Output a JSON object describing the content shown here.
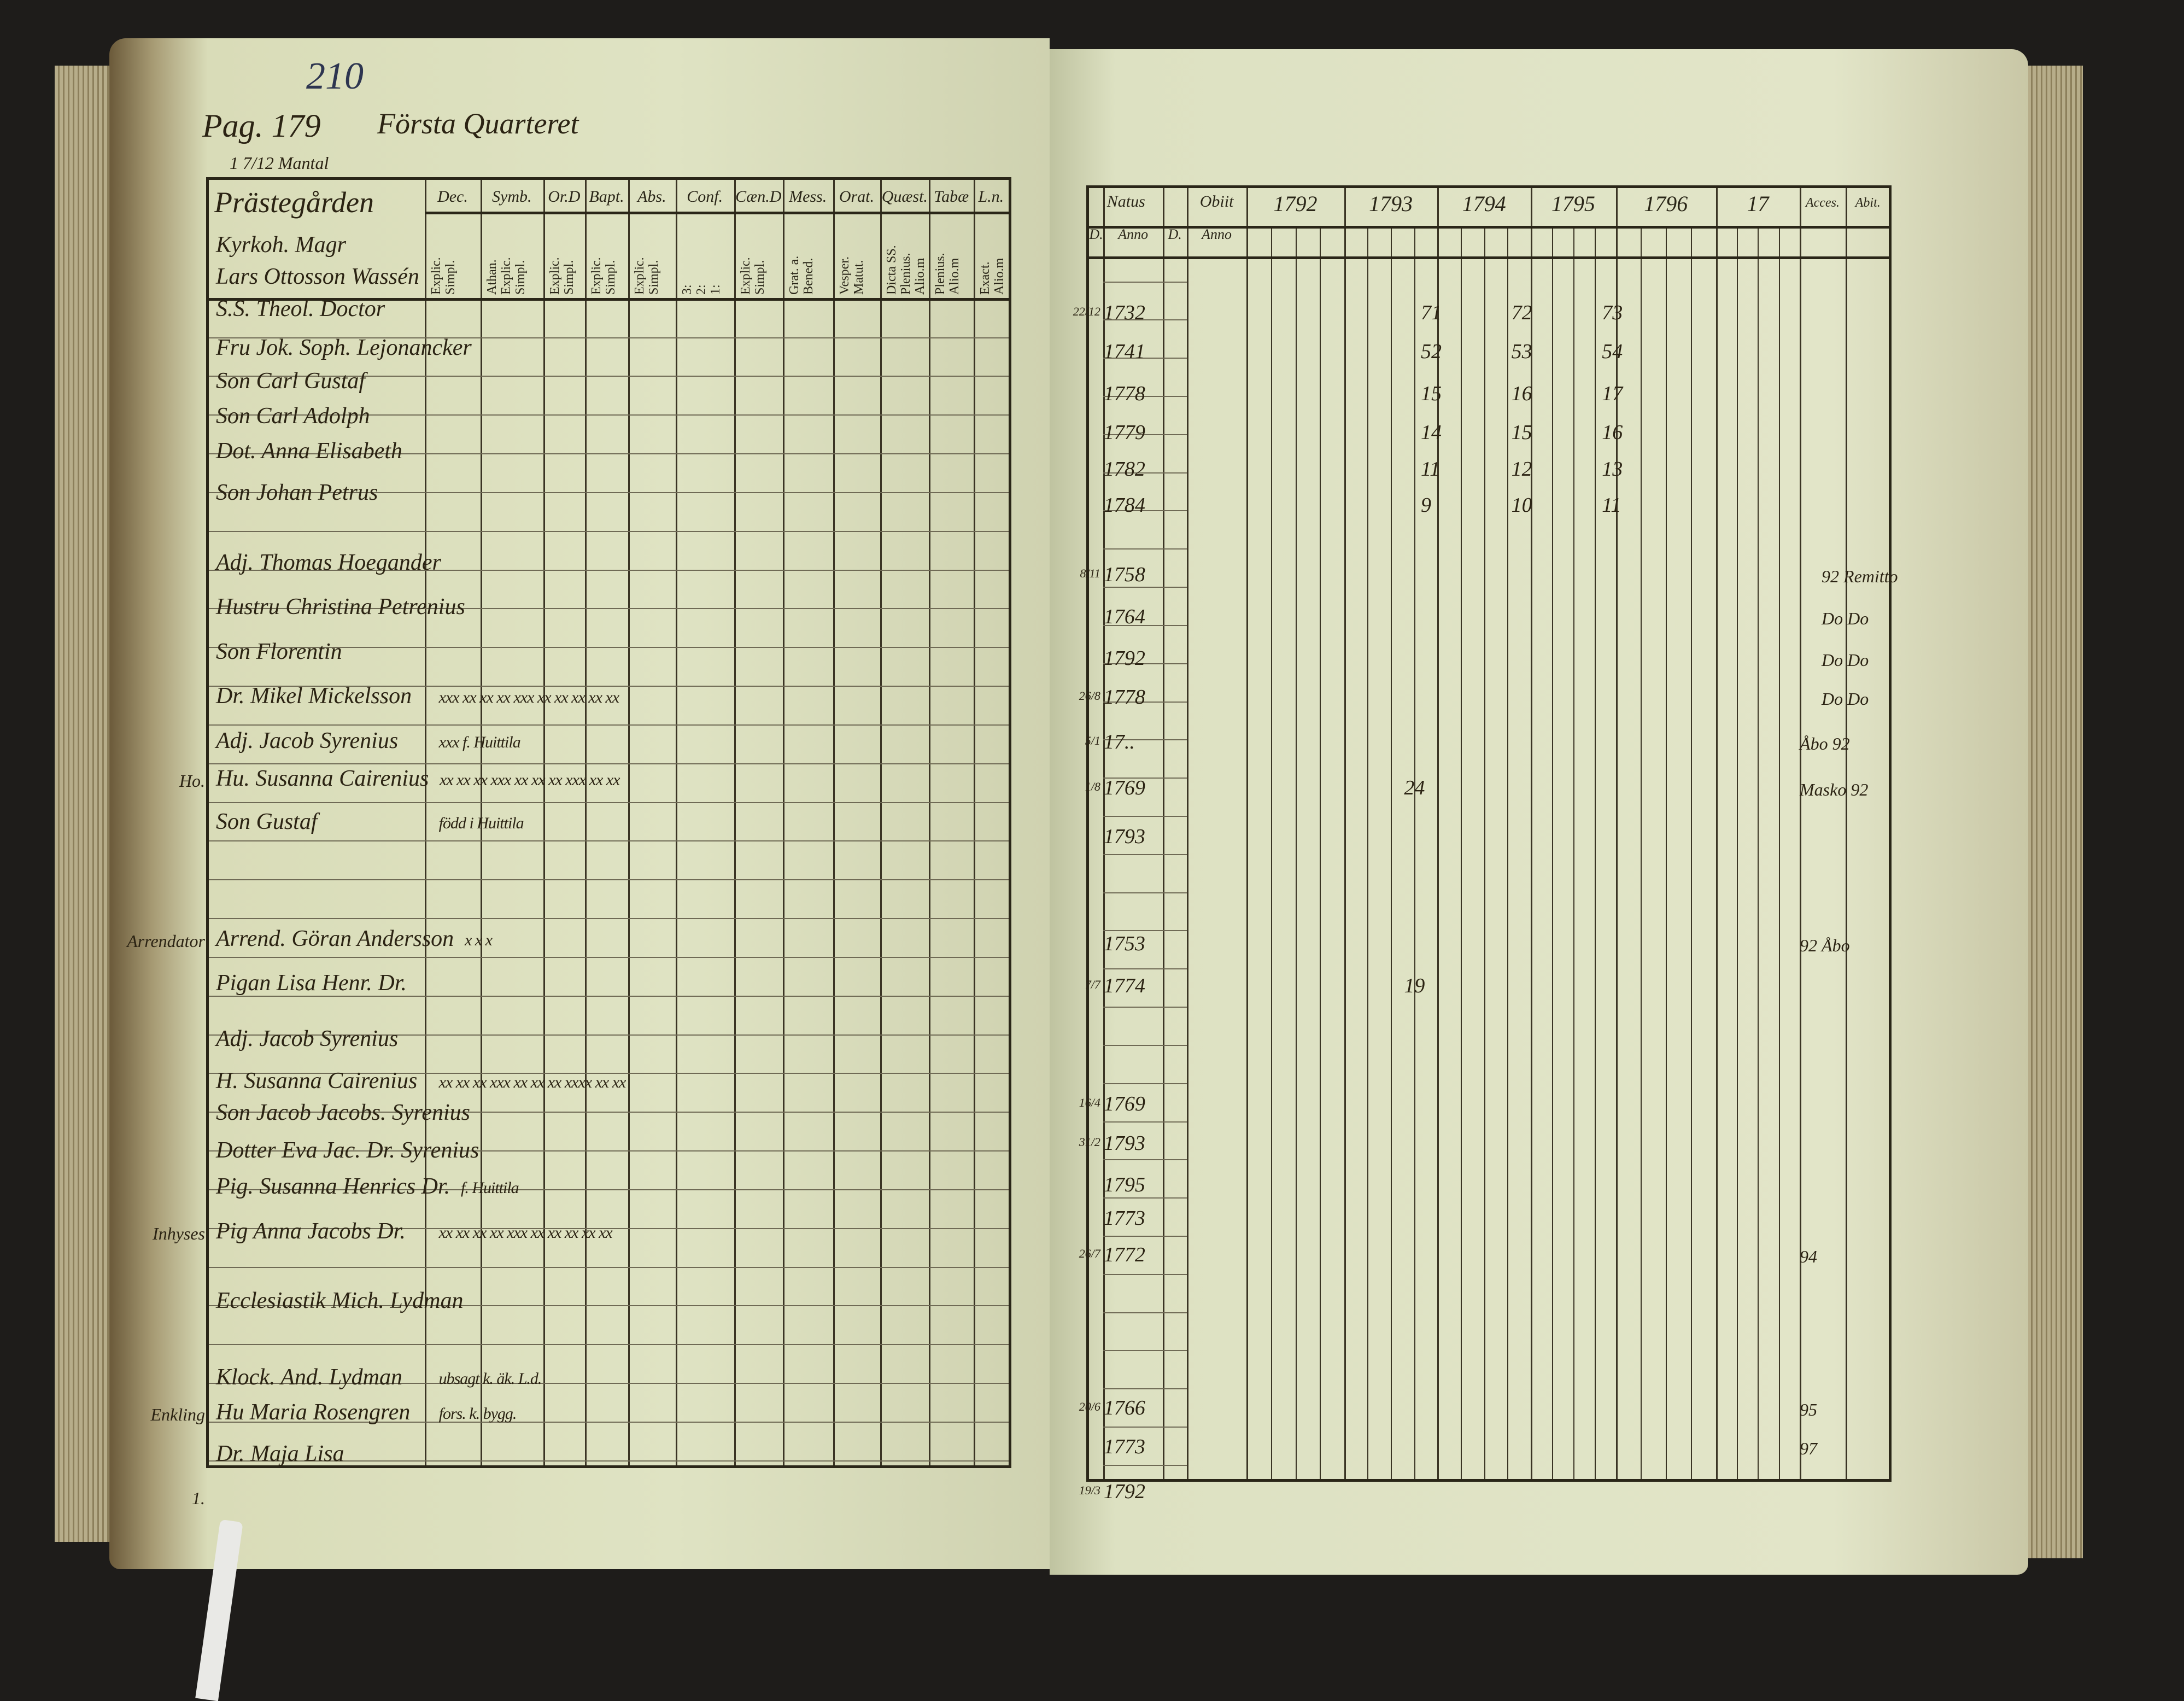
{
  "left_page": {
    "page_number": "210",
    "old_page_number": "Pag. 179",
    "section_title": "Första Quarteret",
    "mantal": "1 7/12 Mantal",
    "farm_heading": "Prästegården",
    "columns": [
      {
        "head": "Dec.",
        "sub": "Explic.\nSimpl."
      },
      {
        "head": "Symb.",
        "sub": "Athan.\nExplic.\nSimpl."
      },
      {
        "head": "Or.D",
        "sub": "Explic.\nSimpl."
      },
      {
        "head": "Bapt.",
        "sub": "Explic.\nSimpl."
      },
      {
        "head": "Abs.",
        "sub": "Explic.\nSimpl."
      },
      {
        "head": "Conf.",
        "sub": "3:\n2:\n1:"
      },
      {
        "head": "Cæn.D",
        "sub": "Explic.\nSimpl."
      },
      {
        "head": "Mess.",
        "sub": "Grat. a.\nBened."
      },
      {
        "head": "Orat.",
        "sub": "Vesper.\nMatut."
      },
      {
        "head": "Quæst.",
        "sub": "Dicta SS.\nPlenius.\nAlio.m"
      },
      {
        "head": "Tabæ",
        "sub": "Plenius.\nAlio.m"
      },
      {
        "head": "L.n.",
        "sub": "Exact.\nAlio.m"
      }
    ],
    "rows": [
      {
        "name": "Kyrkoh. Magr",
        "marks": ""
      },
      {
        "name": "Lars Ottosson Wassén",
        "marks": ""
      },
      {
        "name": "S.S. Theol. Doctor",
        "marks": ""
      },
      {
        "name": "Fru Jok. Soph. Lejonancker",
        "marks": ""
      },
      {
        "name": "Son Carl Gustaf",
        "marks": ""
      },
      {
        "name": "Son Carl Adolph",
        "marks": ""
      },
      {
        "name": "Dot. Anna Elisabeth",
        "marks": ""
      },
      {
        "name": "Son Johan Petrus",
        "marks": ""
      },
      {
        "name": "Adj. Thomas Hoegander",
        "marks": ""
      },
      {
        "name": "Hustru Christina Petrenius",
        "marks": ""
      },
      {
        "name": "Son Florentin",
        "marks": ""
      },
      {
        "name": "Dr. Mikel Mickelsson",
        "marks": "xxx  xx  xx  xx  xxx  xx  xx  xx            xx  xx"
      },
      {
        "name": "Adj. Jacob Syrenius",
        "marks": "xxx   f. Huittila"
      },
      {
        "name": "Hu. Susanna Cairenius",
        "marks": "xx  xx  xx  xxx  xx  xx  xx  xxx  xx  xx"
      },
      {
        "name": "Son Gustaf",
        "marks": "född i Huittila"
      },
      {
        "name": "Arrend. Göran Andersson",
        "marks": "x    x    x"
      },
      {
        "name": "Pigan Lisa Henr. Dr.",
        "marks": ""
      },
      {
        "name": "Adj. Jacob Syrenius",
        "marks": ""
      },
      {
        "name": "H. Susanna Cairenius",
        "marks": "xx  xx  xx  xxx  xx  xx  xx  xxxx  xx  xx"
      },
      {
        "name": "Son Jacob Jacobs. Syrenius",
        "marks": ""
      },
      {
        "name": "Dotter Eva Jac. Dr. Syrenius",
        "marks": ""
      },
      {
        "name": "Pig. Susanna Henrics Dr.",
        "marks": "f. Huittila"
      },
      {
        "name": "Pig Anna Jacobs Dr.",
        "marks": "xx  xx  xx  xx  xxx  xx  xx  xx  xx  xx"
      },
      {
        "name": "Ecclesiastik Mich. Lydman",
        "marks": ""
      },
      {
        "name": "Klock. And. Lydman",
        "marks": "ubsagt  k.   äk.       L.d."
      },
      {
        "name": "Hu Maria Rosengren",
        "marks": "fors.   k.   bygg."
      },
      {
        "name": "Dr. Maja Lisa",
        "marks": ""
      }
    ],
    "margin_notes": [
      "Ho.",
      "Arrendator",
      "Inhyses",
      "Enkling",
      "1."
    ]
  },
  "right_page": {
    "columns": {
      "natus": "Natus",
      "obiit": "Obiit",
      "d": "D.",
      "anno": "Anno",
      "years": [
        "1792",
        "1793",
        "1794",
        "1795",
        "1796",
        "17"
      ],
      "accessit": "Acces.",
      "abiit": "Abit."
    },
    "rows": [
      {
        "day": "22/12",
        "anno": "1732",
        "ages": [
          "71",
          "72",
          "73"
        ],
        "note": ""
      },
      {
        "day": "",
        "anno": "1741",
        "ages": [
          "52",
          "53",
          "54"
        ],
        "note": ""
      },
      {
        "day": "",
        "anno": "1778",
        "ages": [
          "15",
          "16",
          "17"
        ],
        "note": ""
      },
      {
        "day": "",
        "anno": "1779",
        "ages": [
          "14",
          "15",
          "16"
        ],
        "note": ""
      },
      {
        "day": "",
        "anno": "1782",
        "ages": [
          "11",
          "12",
          "13"
        ],
        "note": ""
      },
      {
        "day": "",
        "anno": "1784",
        "ages": [
          "9",
          "10",
          "11"
        ],
        "note": ""
      },
      {
        "day": "",
        "anno": "",
        "ages": [
          "",
          "",
          ""
        ],
        "note": ""
      },
      {
        "day": "8/11",
        "anno": "1758",
        "ages": [
          "",
          "",
          ""
        ],
        "note": "92 Remitto"
      },
      {
        "day": "",
        "anno": "1764",
        "ages": [
          "",
          "",
          ""
        ],
        "note": "Do  Do"
      },
      {
        "day": "",
        "anno": "1792",
        "ages": [
          "",
          "",
          ""
        ],
        "note": "Do  Do"
      },
      {
        "day": "26/8",
        "anno": "1778",
        "ages": [
          "",
          "",
          ""
        ],
        "note": "Do  Do"
      },
      {
        "day": "5/1",
        "anno": "17..",
        "ages": [
          "",
          "",
          ""
        ],
        "note": "Åbo 92"
      },
      {
        "day": "1/8",
        "anno": "1769",
        "ages": [
          "24",
          "",
          ""
        ],
        "note": "Masko 92"
      },
      {
        "day": "",
        "anno": "1793",
        "ages": [
          "",
          "",
          ""
        ],
        "note": ""
      },
      {
        "day": "",
        "anno": "1753",
        "ages": [
          "",
          "",
          ""
        ],
        "note": "92 Åbo"
      },
      {
        "day": "7/7",
        "anno": "1774",
        "ages": [
          "19",
          "",
          ""
        ],
        "note": ""
      },
      {
        "day": "16/4",
        "anno": "1769",
        "ages": [
          "",
          "",
          ""
        ],
        "note": ""
      },
      {
        "day": "31/2",
        "anno": "1793",
        "ages": [
          "",
          "",
          ""
        ],
        "note": ""
      },
      {
        "day": "",
        "anno": "1795",
        "ages": [
          "",
          "",
          ""
        ],
        "note": ""
      },
      {
        "day": "",
        "anno": "1773",
        "ages": [
          "",
          "",
          ""
        ],
        "note": ""
      },
      {
        "day": "26/7",
        "anno": "1772",
        "ages": [
          "",
          "",
          ""
        ],
        "note": "94"
      },
      {
        "day": "20/6",
        "anno": "1766",
        "ages": [
          "",
          "",
          ""
        ],
        "note": "95"
      },
      {
        "day": "",
        "anno": "1773",
        "ages": [
          "",
          "",
          ""
        ],
        "note": "97"
      }
    ],
    "below_table": {
      "day": "19/3",
      "anno": "1792"
    },
    "colors": {
      "paper": "#dfe3c4",
      "ink": "#2a2618",
      "background": "#1e1c1a"
    }
  }
}
